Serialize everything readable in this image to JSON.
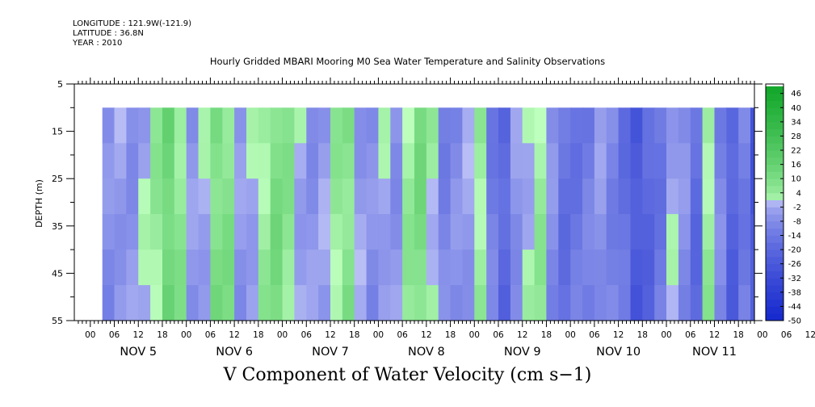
{
  "header": {
    "longitude": "LONGITUDE : 121.9W(-121.9)",
    "latitude": "LATITUDE : 36.8N",
    "year": "YEAR : 2010"
  },
  "chart_data": {
    "type": "heatmap",
    "title": "Hourly Gridded MBARI Mooring M0 Sea Water Temperature and Salinity Observations",
    "caption": "V Component of Water Velocity (cm s−1)",
    "ylabel": "DEPTH (m)",
    "xlabel": "",
    "yaxis": {
      "ylim": [
        5,
        55
      ],
      "inverted": true,
      "ticks": [
        5,
        15,
        25,
        35,
        45,
        55
      ],
      "minor_step": 5
    },
    "xaxis": {
      "hour_ticks": [
        "00",
        "06",
        "12",
        "18",
        "00",
        "06",
        "12",
        "18",
        "00",
        "06",
        "12",
        "18",
        "00",
        "06",
        "12",
        "18",
        "00",
        "06",
        "12",
        "18",
        "00",
        "06",
        "12",
        "18",
        "00",
        "06",
        "12",
        "18",
        "00",
        "06",
        "12",
        "18"
      ],
      "day_labels": [
        "NOV 5",
        "NOV 6",
        "NOV 7",
        "NOV 8",
        "NOV 9",
        "NOV 10",
        "NOV 11"
      ],
      "range_hours": [
        -4,
        166
      ],
      "data_start_hour": 3,
      "data_end_hour": 166,
      "data_top_depth": 10
    },
    "colorbar": {
      "labels": [
        "46",
        "40",
        "34",
        "28",
        "22",
        "16",
        "10",
        "4",
        "-2",
        "-8",
        "-14",
        "-20",
        "-26",
        "-32",
        "-38",
        "-44",
        "-50"
      ],
      "min": -50,
      "max": 50,
      "step": 3,
      "negative_color": "#2233cc",
      "positive_color": "#11aa33",
      "neutral_color": "#e0ffe0"
    },
    "velocity_profile": {
      "hours": [
        3,
        6,
        9,
        12,
        15,
        18,
        21,
        24,
        27,
        30,
        33,
        36,
        39,
        42,
        45,
        48,
        51,
        54,
        57,
        60,
        63,
        66,
        69,
        72,
        75,
        78,
        81,
        84,
        87,
        90,
        93,
        96,
        99,
        102,
        105,
        108,
        111,
        114,
        117,
        120,
        123,
        126,
        129,
        132,
        135,
        138,
        141,
        144,
        147,
        150,
        153,
        156,
        159,
        162,
        165
      ],
      "values": [
        -8,
        -4,
        -6,
        -2,
        4,
        14,
        6,
        -6,
        -2,
        10,
        8,
        -6,
        -2,
        4,
        10,
        6,
        -2,
        -6,
        -4,
        4,
        8,
        -4,
        -8,
        -2,
        -6,
        4,
        10,
        2,
        -10,
        -8,
        -4,
        4,
        -12,
        -20,
        -6,
        0,
        4,
        -8,
        -16,
        -14,
        -12,
        -6,
        -10,
        -16,
        -26,
        -20,
        -14,
        -2,
        -8,
        -18,
        4,
        -10,
        -22,
        -12,
        -26
      ]
    }
  }
}
